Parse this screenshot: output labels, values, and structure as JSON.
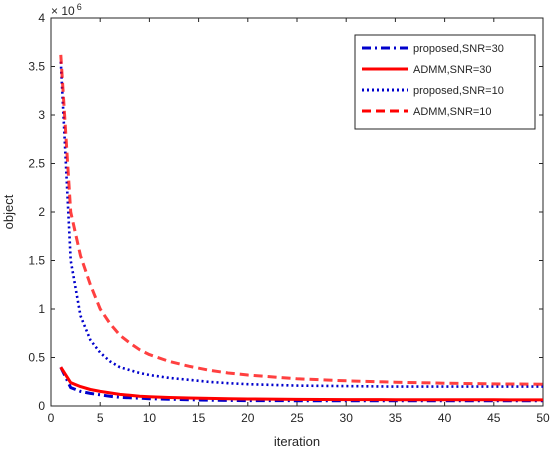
{
  "chart_data": {
    "type": "line",
    "title": "",
    "xlabel": "iteration",
    "ylabel": "object",
    "xlim": [
      0,
      50
    ],
    "ylim": [
      0,
      4
    ],
    "y_exponent_label": "× 10",
    "y_exponent_power": "6",
    "xticks": [
      0,
      5,
      10,
      15,
      20,
      25,
      30,
      35,
      40,
      45,
      50
    ],
    "yticks": [
      0,
      0.5,
      1,
      1.5,
      2,
      2.5,
      3,
      3.5,
      4
    ],
    "ytick_labels": [
      "0",
      "0.5",
      "1",
      "1.5",
      "2",
      "2.5",
      "3",
      "3.5",
      "4"
    ],
    "grid": false,
    "legend_position": "top-right",
    "x": [
      1,
      2,
      3,
      4,
      5,
      6,
      7,
      8,
      9,
      10,
      12,
      14,
      16,
      18,
      20,
      25,
      30,
      35,
      40,
      45,
      50
    ],
    "series": [
      {
        "name": "proposed,SNR=30",
        "color": "#0000cc",
        "dash": "dashdot",
        "values": [
          0.4,
          0.19,
          0.15,
          0.13,
          0.115,
          0.1,
          0.09,
          0.085,
          0.08,
          0.075,
          0.07,
          0.065,
          0.06,
          0.058,
          0.056,
          0.055,
          0.055,
          0.055,
          0.055,
          0.055,
          0.055
        ]
      },
      {
        "name": "ADMM,SNR=30",
        "color": "#ff0000",
        "dash": "solid",
        "values": [
          0.4,
          0.24,
          0.2,
          0.17,
          0.15,
          0.135,
          0.12,
          0.11,
          0.1,
          0.095,
          0.088,
          0.082,
          0.078,
          0.075,
          0.072,
          0.068,
          0.066,
          0.065,
          0.064,
          0.064,
          0.063
        ]
      },
      {
        "name": "proposed,SNR=10",
        "color": "#0000cc",
        "dash": "dot",
        "values": [
          3.55,
          1.5,
          0.93,
          0.68,
          0.55,
          0.46,
          0.4,
          0.37,
          0.34,
          0.32,
          0.29,
          0.27,
          0.25,
          0.235,
          0.225,
          0.21,
          0.205,
          0.2,
          0.2,
          0.2,
          0.2
        ]
      },
      {
        "name": "ADMM,SNR=10",
        "color": "#ff0000",
        "dash": "dash",
        "values": [
          3.62,
          2.0,
          1.55,
          1.25,
          1.0,
          0.85,
          0.73,
          0.65,
          0.58,
          0.53,
          0.46,
          0.41,
          0.37,
          0.34,
          0.32,
          0.28,
          0.26,
          0.245,
          0.235,
          0.228,
          0.225
        ]
      }
    ]
  }
}
